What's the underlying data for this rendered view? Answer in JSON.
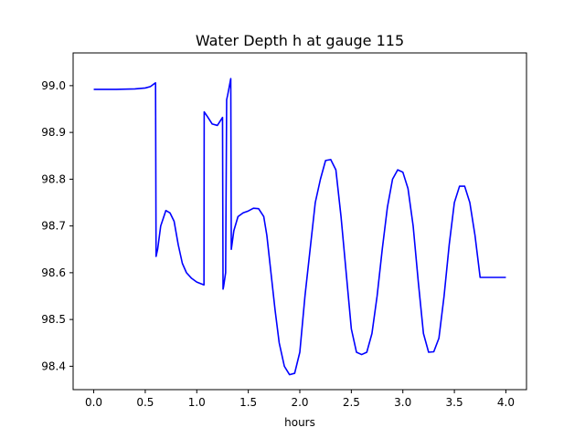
{
  "chart_data": {
    "type": "line",
    "title": "Water Depth h at gauge 115",
    "xlabel": "hours",
    "ylabel": "",
    "xlim": [
      -0.2,
      4.2
    ],
    "ylim": [
      98.35,
      99.07
    ],
    "xticks": [
      0.0,
      0.5,
      1.0,
      1.5,
      2.0,
      2.5,
      3.0,
      3.5,
      4.0
    ],
    "xtick_labels": [
      "0.0",
      "0.5",
      "1.0",
      "1.5",
      "2.0",
      "2.5",
      "3.0",
      "3.5",
      "4.0"
    ],
    "yticks": [
      98.4,
      98.5,
      98.6,
      98.7,
      98.8,
      98.9,
      99.0
    ],
    "ytick_labels": [
      "98.4",
      "98.5",
      "98.6",
      "98.7",
      "98.8",
      "98.9",
      "99.0"
    ],
    "grid": false,
    "line_color": "#0000ff",
    "series": [
      {
        "x": [
          0.0,
          0.2,
          0.4,
          0.5,
          0.55,
          0.58,
          0.6,
          0.605,
          0.62,
          0.65,
          0.7,
          0.74,
          0.78,
          0.82,
          0.86,
          0.9,
          0.95,
          1.0,
          1.07,
          1.072,
          1.1,
          1.15,
          1.2,
          1.25,
          1.255,
          1.26,
          1.28,
          1.29,
          1.3,
          1.33,
          1.335,
          1.36,
          1.4,
          1.45,
          1.5,
          1.55,
          1.6,
          1.65,
          1.68,
          1.72,
          1.76,
          1.8,
          1.85,
          1.9,
          1.95,
          2.0,
          2.05,
          2.1,
          2.15,
          2.2,
          2.25,
          2.3,
          2.35,
          2.4,
          2.45,
          2.5,
          2.55,
          2.6,
          2.65,
          2.7,
          2.75,
          2.8,
          2.85,
          2.9,
          2.95,
          3.0,
          3.05,
          3.1,
          3.15,
          3.2,
          3.25,
          3.3,
          3.35,
          3.4,
          3.45,
          3.5,
          3.55,
          3.6,
          3.65,
          3.7,
          3.75,
          3.8,
          3.85,
          3.9,
          3.95,
          4.0
        ],
        "y": [
          98.992,
          98.992,
          98.993,
          98.995,
          98.998,
          99.003,
          99.006,
          98.635,
          98.65,
          98.7,
          98.733,
          98.728,
          98.71,
          98.66,
          98.62,
          98.6,
          98.588,
          98.58,
          98.574,
          98.944,
          98.935,
          98.918,
          98.915,
          98.932,
          98.565,
          98.57,
          98.6,
          98.97,
          98.98,
          99.015,
          98.65,
          98.69,
          98.72,
          98.728,
          98.732,
          98.738,
          98.737,
          98.72,
          98.68,
          98.6,
          98.52,
          98.45,
          98.4,
          98.382,
          98.385,
          98.43,
          98.55,
          98.65,
          98.75,
          98.8,
          98.84,
          98.842,
          98.82,
          98.72,
          98.6,
          98.48,
          98.43,
          98.425,
          98.43,
          98.47,
          98.55,
          98.65,
          98.74,
          98.8,
          98.82,
          98.815,
          98.78,
          98.7,
          98.58,
          98.47,
          98.43,
          98.431,
          98.46,
          98.55,
          98.66,
          98.75,
          98.785,
          98.785,
          98.75,
          98.68,
          98.59,
          98.59,
          98.59,
          98.59,
          98.59,
          98.59
        ]
      }
    ]
  }
}
